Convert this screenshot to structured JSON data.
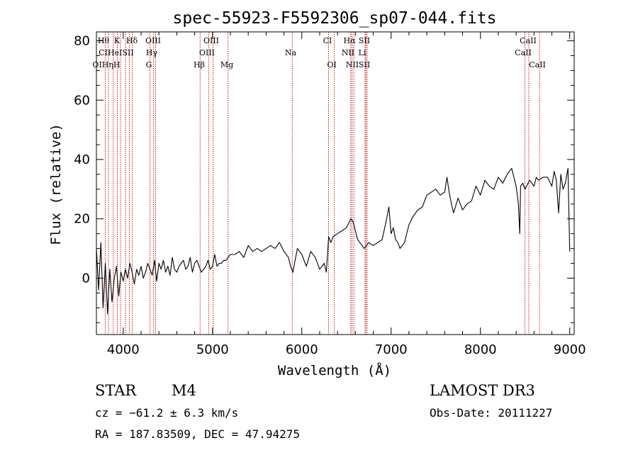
{
  "chart_data": {
    "type": "line",
    "title": "spec-55923-F5592306_sp07-044.fits",
    "xlabel": "Wavelength (Å)",
    "ylabel": "Flux (relative)",
    "xlim": [
      3700,
      9050
    ],
    "ylim": [
      -19,
      83
    ],
    "xticks": [
      4000,
      5000,
      6000,
      7000,
      8000,
      9000
    ],
    "yticks": [
      0,
      20,
      40,
      60,
      80
    ],
    "grid": false,
    "colors": {
      "spectrum": "#000000",
      "lines": "#c00000"
    },
    "series": [
      {
        "name": "flux",
        "x": [
          3700,
          3725,
          3750,
          3775,
          3800,
          3825,
          3850,
          3875,
          3900,
          3925,
          3950,
          3975,
          4000,
          4025,
          4050,
          4075,
          4100,
          4125,
          4150,
          4175,
          4200,
          4225,
          4250,
          4275,
          4300,
          4325,
          4350,
          4375,
          4400,
          4425,
          4450,
          4475,
          4500,
          4525,
          4550,
          4575,
          4600,
          4625,
          4650,
          4675,
          4700,
          4725,
          4750,
          4775,
          4800,
          4825,
          4850,
          4875,
          4900,
          4925,
          4950,
          4975,
          5000,
          5025,
          5050,
          5075,
          5100,
          5125,
          5150,
          5175,
          5200,
          5250,
          5300,
          5350,
          5400,
          5450,
          5500,
          5550,
          5600,
          5650,
          5700,
          5750,
          5800,
          5850,
          5875,
          5900,
          5925,
          5950,
          6000,
          6050,
          6100,
          6150,
          6200,
          6250,
          6275,
          6300,
          6325,
          6350,
          6400,
          6450,
          6500,
          6550,
          6575,
          6600,
          6625,
          6650,
          6700,
          6750,
          6800,
          6850,
          6900,
          6950,
          6975,
          7000,
          7025,
          7050,
          7075,
          7100,
          7150,
          7200,
          7250,
          7300,
          7350,
          7400,
          7450,
          7500,
          7550,
          7600,
          7625,
          7650,
          7675,
          7700,
          7750,
          7800,
          7850,
          7900,
          7950,
          8000,
          8050,
          8100,
          8150,
          8200,
          8250,
          8300,
          8350,
          8400,
          8425,
          8440,
          8450,
          8475,
          8500,
          8550,
          8600,
          8625,
          8650,
          8700,
          8750,
          8800,
          8825,
          8850,
          8875,
          8900,
          8925,
          8950,
          8980,
          9000
        ],
        "values": [
          10,
          -4,
          12,
          -10,
          5,
          -12,
          3,
          -8,
          0,
          4,
          -6,
          2,
          -1,
          3,
          0,
          5,
          2,
          -2,
          3,
          1,
          4,
          0,
          2,
          5,
          3,
          1,
          6,
          -1,
          5,
          3,
          6,
          2,
          4,
          1,
          7,
          3,
          2,
          4,
          5,
          6,
          3,
          4,
          7,
          2,
          5,
          6,
          4,
          2,
          3,
          4,
          6,
          3,
          4,
          8,
          4,
          5,
          5,
          6,
          6,
          7,
          8,
          8,
          9,
          7,
          11,
          9,
          10,
          9,
          10,
          11,
          10,
          12,
          9,
          7,
          4,
          2,
          6,
          10,
          8,
          4,
          9,
          7,
          3,
          5,
          2,
          14,
          12,
          14,
          15,
          16,
          17,
          20,
          19,
          16,
          13,
          12,
          10,
          12,
          11,
          12,
          13,
          20,
          24,
          15,
          17,
          13,
          12,
          10,
          12,
          18,
          21,
          23,
          24,
          28,
          29,
          30,
          28,
          29,
          34,
          29,
          25,
          22,
          27,
          23,
          25,
          26,
          31,
          28,
          33,
          31,
          30,
          34,
          32,
          35,
          37,
          31,
          25,
          15,
          31,
          32,
          30,
          33,
          31,
          34,
          33,
          34,
          34,
          31,
          36,
          33,
          22,
          35,
          30,
          32,
          37,
          9
        ]
      }
    ],
    "line_groups": [
      {
        "row": 1,
        "labels": [
          "Hθ",
          "K",
          "Hδ",
          "OIII",
          "OIII",
          "CI",
          "Hα",
          "SII",
          "CaII"
        ]
      },
      {
        "row": 2,
        "labels": [
          "CIHeISII",
          "Hγ",
          "OIII",
          "Na",
          "NII",
          "Li",
          "CaII"
        ]
      },
      {
        "row": 3,
        "labels": [
          "OIHηH",
          "G",
          "Hβ",
          "Mg",
          "OI",
          "NIISII",
          "CaII"
        ]
      }
    ],
    "lines": [
      3798,
      3835,
      3889,
      3934,
      3970,
      4026,
      4068,
      4102,
      4300,
      4341,
      4363,
      4861,
      4959,
      5007,
      5175,
      5893,
      6300,
      6364,
      6548,
      6563,
      6583,
      6708,
      6717,
      6731,
      8498,
      8542,
      8662
    ]
  },
  "info": {
    "object_type": "STAR",
    "subclass": "M4",
    "survey": "LAMOST DR3",
    "velocity": "cz = −61.2 ± 6.3 km/s",
    "obs_date": "Obs-Date: 20111227",
    "coords": "RA = 187.83509, DEC =  47.94275"
  }
}
